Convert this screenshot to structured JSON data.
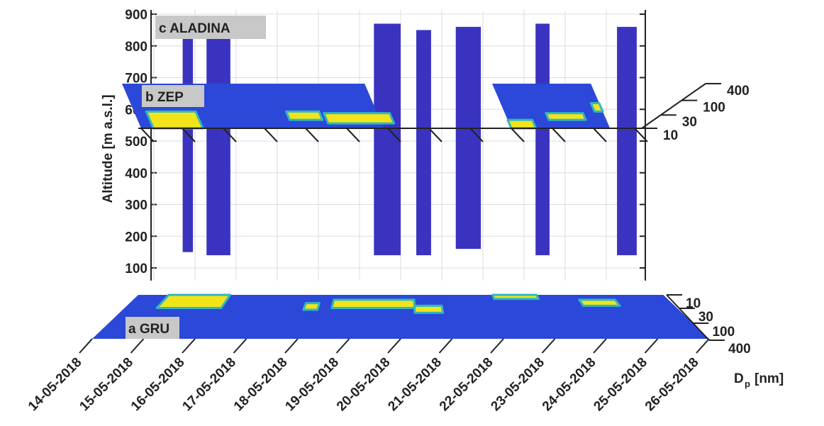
{
  "chart_data": {
    "type": "heatmap3d",
    "xlim": [
      0,
      12
    ],
    "xticks": [
      {
        "value": 0,
        "label": "14-05-2018"
      },
      {
        "value": 1,
        "label": "15-05-2018"
      },
      {
        "value": 2,
        "label": "16-05-2018"
      },
      {
        "value": 3,
        "label": "17-05-2018"
      },
      {
        "value": 4,
        "label": "18-05-2018"
      },
      {
        "value": 5,
        "label": "19-05-2018"
      },
      {
        "value": 6,
        "label": "20-05-2018"
      },
      {
        "value": 7,
        "label": "21-05-2018"
      },
      {
        "value": 8,
        "label": "22-05-2018"
      },
      {
        "value": 9,
        "label": "23-05-2018"
      },
      {
        "value": 10,
        "label": "24-05-2018"
      },
      {
        "value": 11,
        "label": "25-05-2018"
      },
      {
        "value": 12,
        "label": "26-05-2018"
      }
    ],
    "dp_label": {
      "base": "D",
      "sub": "p",
      "unit": "[nm]"
    },
    "dplim": [
      10,
      400
    ],
    "dpticks": [
      10,
      30,
      100,
      400
    ],
    "log_dp": true,
    "base_color": "#2c48d8",
    "event_color": "#f3e41a",
    "event_edge_color": "#2fb8c0",
    "aladina": {
      "label": "c ALADINA",
      "y_label": "Altitude [m a.s.l.]",
      "ylim": [
        60,
        900
      ],
      "yticks": [
        100,
        200,
        300,
        400,
        500,
        600,
        700,
        800,
        900
      ],
      "grid": true,
      "color": "#3a33c0",
      "x_start": [
        1.7,
        2.28,
        6.35,
        7.38,
        8.34,
        10.28,
        12.26
      ],
      "x_end": [
        1.95,
        2.86,
        7.0,
        7.74,
        8.95,
        10.62,
        12.74
      ],
      "alt_min": [
        150,
        140,
        140,
        140,
        160,
        140,
        140
      ],
      "alt_max": [
        830,
        830,
        870,
        850,
        860,
        870,
        860
      ]
    },
    "zep": {
      "label": "b ZEP",
      "coverage_start": [
        0,
        9.0
      ],
      "coverage_end": [
        5.9,
        11.4
      ],
      "x_start": [
        0.3,
        3.7,
        4.6,
        9.0,
        10.0,
        11.2
      ],
      "x_end": [
        1.5,
        4.5,
        6.2,
        9.6,
        10.9,
        11.4
      ],
      "dp_min": [
        10,
        20,
        15,
        10,
        20,
        40
      ],
      "dp_max": [
        40,
        40,
        35,
        20,
        35,
        80
      ]
    },
    "gru": {
      "label": "a GRU",
      "coverage_start": [
        0
      ],
      "coverage_end": [
        12
      ],
      "x_start": [
        0.7,
        3.9,
        4.5,
        6.3,
        8.1,
        10.0
      ],
      "x_end": [
        2.1,
        4.2,
        6.3,
        6.9,
        9.1,
        10.8
      ],
      "dp_min": [
        10,
        20,
        15,
        25,
        10,
        15
      ],
      "dp_max": [
        30,
        35,
        30,
        45,
        14,
        25
      ]
    }
  }
}
